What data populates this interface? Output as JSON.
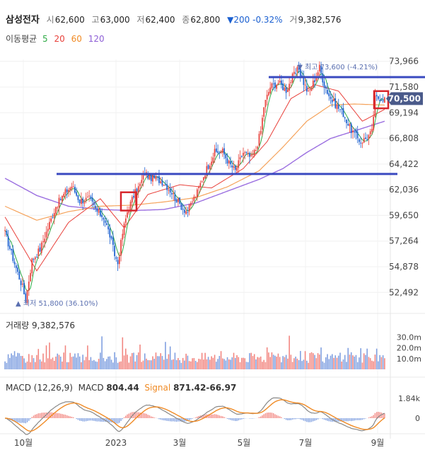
{
  "header": {
    "name": "삼성전자",
    "open_label": "시",
    "open": "62,600",
    "high_label": "고",
    "high": "63,000",
    "low_label": "저",
    "low": "62,400",
    "close_label": "종",
    "close": "62,800",
    "change": "▼200 -0.32%",
    "volume_label": "거",
    "volume": "9,382,576"
  },
  "moving_average": {
    "label": "이동평균",
    "periods": [
      {
        "value": "5",
        "color": "#2eaa45"
      },
      {
        "value": "20",
        "color": "#e8403a"
      },
      {
        "value": "60",
        "color": "#f08a24"
      },
      {
        "value": "120",
        "color": "#8e5fd6"
      }
    ]
  },
  "colors": {
    "up": "#e8403a",
    "down": "#1a5fd0",
    "ma5": "#2eaa45",
    "ma20": "#e8403a",
    "ma60": "#f5a35c",
    "ma120": "#9b6fe0",
    "support_line": "#3a4ac0",
    "highlight_box": "#d7262c",
    "current_price_tag": "#4a5a8a",
    "macd_line": "#888888",
    "signal_line": "#f08a24"
  },
  "chart_data": {
    "type": "candlestick",
    "price_axis": {
      "ticks": [
        "73,966",
        "71,580",
        "69,194",
        "66,808",
        "64,422",
        "62,036",
        "59,650",
        "57,264",
        "54,878",
        "52,492"
      ],
      "range": [
        51000,
        74800
      ]
    },
    "x_axis": {
      "ticks": [
        "10월",
        "2023",
        "3월",
        "5월",
        "7월",
        "9월"
      ]
    },
    "current_price": "70,500",
    "max_annotation": "최고 73,600 (-4.21%)",
    "min_annotation": "최저 51,800 (36.10%)",
    "horizontal_lines": [
      72500,
      63500
    ],
    "highlight_boxes": [
      {
        "price_low": 60100,
        "price_high": 61800
      },
      {
        "price_low": 69600,
        "price_high": 71200
      }
    ],
    "price_path": [
      [
        0,
        58000
      ],
      [
        6,
        55200
      ],
      [
        11,
        53000
      ],
      [
        13,
        51800
      ],
      [
        17,
        55500
      ],
      [
        22,
        56500
      ],
      [
        27,
        58500
      ],
      [
        32,
        60500
      ],
      [
        38,
        61800
      ],
      [
        42,
        62400
      ],
      [
        47,
        61000
      ],
      [
        53,
        61200
      ],
      [
        58,
        60000
      ],
      [
        62,
        59500
      ],
      [
        66,
        57800
      ],
      [
        69,
        56000
      ],
      [
        71,
        55200
      ],
      [
        74,
        58000
      ],
      [
        77,
        60000
      ],
      [
        81,
        61500
      ],
      [
        85,
        62500
      ],
      [
        88,
        63600
      ],
      [
        91,
        63200
      ],
      [
        95,
        63100
      ],
      [
        100,
        62700
      ],
      [
        104,
        62000
      ],
      [
        108,
        61100
      ],
      [
        112,
        60300
      ],
      [
        115,
        60000
      ],
      [
        118,
        61000
      ],
      [
        121,
        61800
      ],
      [
        124,
        63000
      ],
      [
        127,
        64000
      ],
      [
        132,
        65500
      ],
      [
        137,
        65600
      ],
      [
        141,
        64500
      ],
      [
        145,
        63800
      ],
      [
        150,
        65500
      ],
      [
        155,
        65000
      ],
      [
        158,
        65800
      ],
      [
        161,
        67500
      ],
      [
        163,
        69800
      ],
      [
        167,
        71600
      ],
      [
        172,
        72000
      ],
      [
        177,
        71300
      ],
      [
        181,
        72500
      ],
      [
        185,
        73300
      ],
      [
        188,
        72000
      ],
      [
        191,
        71000
      ],
      [
        195,
        72300
      ],
      [
        198,
        73400
      ],
      [
        201,
        71800
      ],
      [
        205,
        70500
      ],
      [
        209,
        69800
      ],
      [
        213,
        69100
      ],
      [
        217,
        67800
      ],
      [
        221,
        67000
      ],
      [
        224,
        66500
      ],
      [
        228,
        66900
      ],
      [
        231,
        67400
      ],
      [
        233,
        70500
      ],
      [
        236,
        70600
      ],
      [
        239,
        70500
      ]
    ],
    "ma_paths": {
      "ma20": [
        [
          0,
          59500
        ],
        [
          20,
          54500
        ],
        [
          40,
          59000
        ],
        [
          60,
          61200
        ],
        [
          75,
          58500
        ],
        [
          90,
          61600
        ],
        [
          110,
          62500
        ],
        [
          130,
          62200
        ],
        [
          150,
          64000
        ],
        [
          165,
          66500
        ],
        [
          180,
          70500
        ],
        [
          195,
          71800
        ],
        [
          210,
          71200
        ],
        [
          225,
          68400
        ],
        [
          239,
          69500
        ]
      ],
      "ma60": [
        [
          0,
          60500
        ],
        [
          20,
          59200
        ],
        [
          40,
          60000
        ],
        [
          60,
          60500
        ],
        [
          80,
          60600
        ],
        [
          100,
          60900
        ],
        [
          120,
          61300
        ],
        [
          140,
          62300
        ],
        [
          160,
          63800
        ],
        [
          175,
          66000
        ],
        [
          190,
          68400
        ],
        [
          205,
          69900
        ],
        [
          220,
          70000
        ],
        [
          239,
          69900
        ]
      ],
      "ma120": [
        [
          0,
          63100
        ],
        [
          20,
          61500
        ],
        [
          40,
          60500
        ],
        [
          60,
          60200
        ],
        [
          80,
          60100
        ],
        [
          100,
          60200
        ],
        [
          120,
          60800
        ],
        [
          140,
          61900
        ],
        [
          160,
          63000
        ],
        [
          175,
          64000
        ],
        [
          190,
          65500
        ],
        [
          205,
          66800
        ],
        [
          220,
          67500
        ],
        [
          239,
          68400
        ]
      ]
    },
    "volume": {
      "label": "거래량",
      "value": "9,382,576",
      "ticks": [
        "30.0m",
        "20.0m",
        "10.0m"
      ],
      "max": 33
    },
    "macd": {
      "label": "MACD (12,26,9)",
      "macd_label": "MACD",
      "macd_value": "804.44",
      "signal_label": "Signal",
      "signal_value": "871.42-66.97",
      "ticks": [
        "1.84k",
        "0"
      ]
    }
  }
}
